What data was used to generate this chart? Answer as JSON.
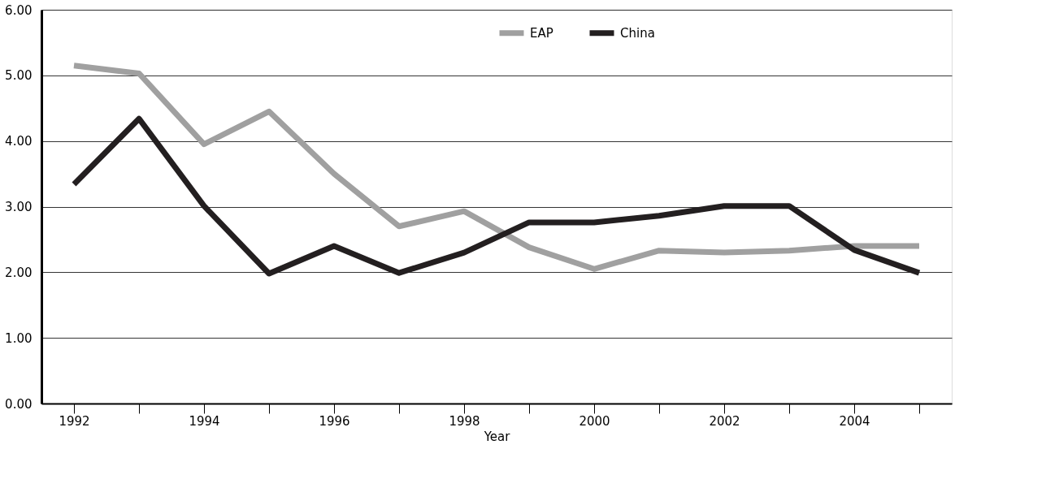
{
  "chart_data": {
    "type": "line",
    "xlabel": "Year",
    "categories": [
      "1992",
      null,
      "1994",
      null,
      "1996",
      null,
      "1998",
      null,
      "2000",
      null,
      "2002",
      null,
      "2004",
      null
    ],
    "series": [
      {
        "name": "EAP",
        "color": "#a0a0a0",
        "values": [
          5.15,
          5.03,
          3.95,
          4.45,
          3.5,
          2.7,
          2.93,
          2.38,
          2.05,
          2.33,
          2.3,
          2.33,
          2.4,
          2.4
        ]
      },
      {
        "name": "China",
        "color": "#231f20",
        "values": [
          3.34,
          4.34,
          3.01,
          1.98,
          2.4,
          1.99,
          2.3,
          2.76,
          2.76,
          2.86,
          3.01,
          3.01,
          2.34,
          1.99
        ]
      }
    ],
    "ylim": [
      0,
      6
    ],
    "yticks": [
      {
        "value": 0,
        "label": "0.00"
      },
      {
        "value": 1,
        "label": "1.00"
      },
      {
        "value": 2,
        "label": "2.00"
      },
      {
        "value": 3,
        "label": "3.00"
      },
      {
        "value": 4,
        "label": "4.00"
      },
      {
        "value": 5,
        "label": "5.00"
      },
      {
        "value": 6,
        "label": "6.00"
      }
    ],
    "grid": "y",
    "legend": "top",
    "line_style": "solid",
    "marker": "none"
  }
}
